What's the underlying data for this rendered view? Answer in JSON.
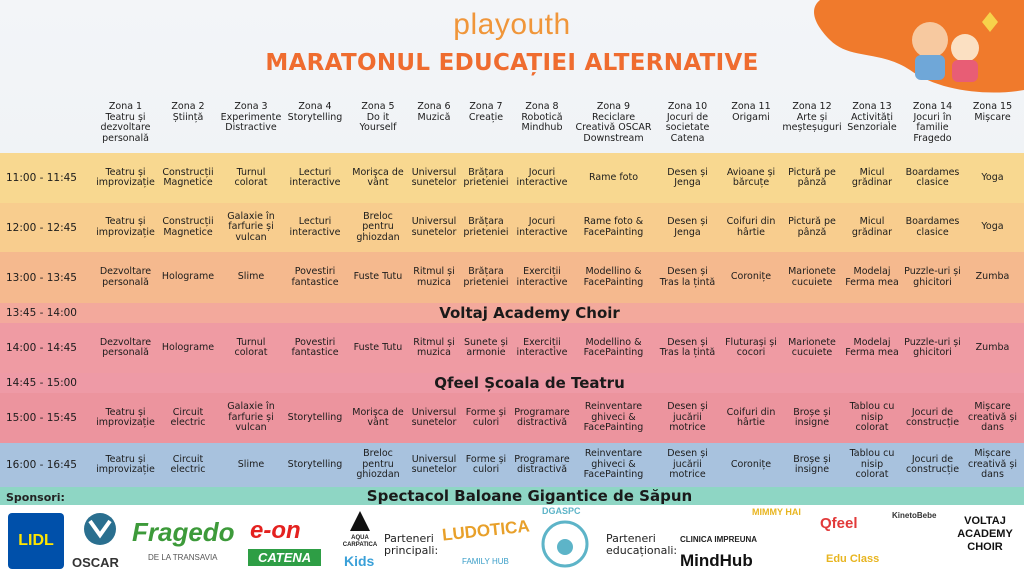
{
  "header": {
    "logo": "playouth",
    "title": "MARATONUL EDUCAȚIEI ALTERNATIVE"
  },
  "table": {
    "columns": [
      {
        "zone": "Zona 1",
        "name": "Teatru și dezvoltare personală"
      },
      {
        "zone": "Zona 2",
        "name": "Știință"
      },
      {
        "zone": "Zona 3",
        "name": "Experimente Distractive"
      },
      {
        "zone": "Zona 4",
        "name": "Storytelling"
      },
      {
        "zone": "Zona 5",
        "name": "Do it Yourself"
      },
      {
        "zone": "Zona 6",
        "name": "Muzică"
      },
      {
        "zone": "Zona 7",
        "name": "Creație"
      },
      {
        "zone": "Zona 8",
        "name": "Robotică Mindhub"
      },
      {
        "zone": "Zona 9",
        "name": "Reciclare Creativă OSCAR Downstream"
      },
      {
        "zone": "Zona 10",
        "name": "Jocuri de societate Catena"
      },
      {
        "zone": "Zona 11",
        "name": "Origami"
      },
      {
        "zone": "Zona 12",
        "name": "Arte și meșteșuguri"
      },
      {
        "zone": "Zona 13",
        "name": "Activități Senzoriale"
      },
      {
        "zone": "Zona 14",
        "name": "Jocuri în familie Fragedo"
      },
      {
        "zone": "Zona 15",
        "name": "Mișcare"
      }
    ],
    "rows": [
      {
        "time": "11:00 - 11:45",
        "cells": [
          "Teatru și improvizație",
          "Construcții Magnetice",
          "Turnul colorat",
          "Lecturi interactive",
          "Morișca de vânt",
          "Universul sunetelor",
          "Brățara prieteniei",
          "Jocuri interactive",
          "Rame foto",
          "Desen și Jenga",
          "Avioane și bărcuțe",
          "Pictură pe pânză",
          "Micul grădinar",
          "Boardames clasice",
          "Yoga"
        ]
      },
      {
        "time": "12:00 - 12:45",
        "cells": [
          "Teatru și improvizație",
          "Construcții Magnetice",
          "Galaxie în farfurie și vulcan",
          "Lecturi interactive",
          "Breloc pentru ghiozdan",
          "Universul sunetelor",
          "Brățara prieteniei",
          "Jocuri interactive",
          "Rame foto & FacePainting",
          "Desen și Jenga",
          "Coifuri din hârtie",
          "Pictură pe pânză",
          "Micul grădinar",
          "Boardames clasice",
          "Yoga"
        ]
      },
      {
        "time": "13:00 - 13:45",
        "cells": [
          "Dezvoltare personală",
          "Holograme",
          "Slime",
          "Povestiri fantastice",
          "Fuste Tutu",
          "Ritmul și muzica",
          "Brățara prieteniei",
          "Exerciții interactive",
          "Modellino & FacePainting",
          "Desen și Tras la țintă",
          "Coronițe",
          "Marionete cucuiete",
          "Modelaj Ferma mea",
          "Puzzle-uri și ghicitori",
          "Zumba"
        ]
      },
      {
        "time": "13:45 - 14:00",
        "event": "Voltaj Academy Choir"
      },
      {
        "time": "14:00 - 14:45",
        "cells": [
          "Dezvoltare personală",
          "Holograme",
          "Turnul colorat",
          "Povestiri fantastice",
          "Fuste Tutu",
          "Ritmul și muzica",
          "Sunete și armonie",
          "Exerciții interactive",
          "Modellino & FacePainting",
          "Desen și Tras la țintă",
          "Fluturași și cocori",
          "Marionete cucuiete",
          "Modelaj Ferma mea",
          "Puzzle-uri și ghicitori",
          "Zumba"
        ]
      },
      {
        "time": "14:45 - 15:00",
        "event": "Qfeel Școala de Teatru"
      },
      {
        "time": "15:00 - 15:45",
        "cells": [
          "Teatru și improvizație",
          "Circuit electric",
          "Galaxie în farfurie și vulcan",
          "Storytelling",
          "Morișca de vânt",
          "Universul sunetelor",
          "Forme și culori",
          "Programare distractivă",
          "Reinventare ghiveci & FacePainting",
          "Desen și jucării motrice",
          "Coifuri din hârtie",
          "Broșe și insigne",
          "Tablou cu nisip colorat",
          "Jocuri de construcție",
          "Mișcare creativă și dans"
        ]
      },
      {
        "time": "16:00 - 16:45",
        "cells": [
          "Teatru și improvizație",
          "Circuit electric",
          "Slime",
          "Storytelling",
          "Breloc pentru ghiozdan",
          "Universul sunetelor",
          "Forme și culori",
          "Programare distractivă",
          "Reinventare ghiveci & FacePainting",
          "Desen și jucării motrice",
          "Coronițe",
          "Broșe și insigne",
          "Tablou cu nisip colorat",
          "Jocuri de construcție",
          "Mișcare creativă și dans"
        ]
      },
      {
        "event": "Spectacol Baloane Gigantice de Săpun"
      }
    ]
  },
  "sponsors": {
    "label": "Sponsori:",
    "sponsors": [
      "LIDL",
      "OSCAR",
      "Fragedo",
      "DE LA TRANSAVIA",
      "e-on",
      "CATENA",
      "AQUA CARPATICA",
      "Kids"
    ],
    "main_partners_label": "Parteneri principali:",
    "main_partners": [
      "LUDOTICA",
      "FAMILY HUB",
      "DGASPC"
    ],
    "edu_partners_label": "Parteneri educaționali:",
    "edu_partners": [
      "CLINICA IMPREUNA",
      "MIMMY HAI",
      "MindHub",
      "Qfeel",
      "KinetoBebe",
      "Edu Class",
      "VOLTAJ ACADEMY CHOIR"
    ]
  }
}
